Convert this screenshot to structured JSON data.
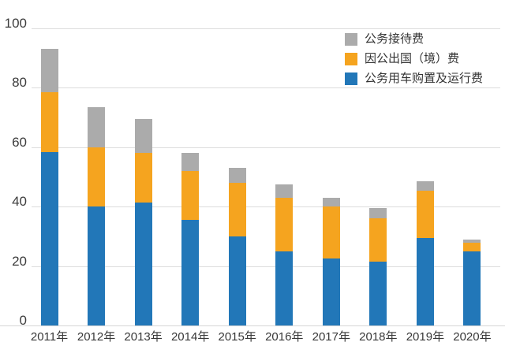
{
  "chart_data": {
    "type": "bar",
    "stacked": true,
    "title": "",
    "xlabel": "",
    "ylabel": "",
    "categories": [
      "2011年",
      "2012年",
      "2013年",
      "2014年",
      "2015年",
      "2016年",
      "2017年",
      "2018年",
      "2019年",
      "2020年"
    ],
    "series": [
      {
        "name": "公务用车购置及运行费",
        "color": "#2277B8",
        "values": [
          58.5,
          40,
          41.5,
          35.5,
          30,
          25,
          22.5,
          21.5,
          29.5,
          25
        ]
      },
      {
        "name": "因公出国（境）费",
        "color": "#F5A41F",
        "values": [
          20,
          20,
          16.5,
          16.5,
          18,
          18,
          17.5,
          14.5,
          16,
          3
        ]
      },
      {
        "name": "公务接待费",
        "color": "#ABABAB",
        "values": [
          14.5,
          13.5,
          11.5,
          6,
          5,
          4.5,
          3,
          3.5,
          3,
          1
        ]
      }
    ],
    "stack_totals": [
      93,
      73.5,
      69.5,
      58,
      53,
      47.5,
      43,
      39.5,
      48.5,
      29
    ],
    "y_ticks": [
      0,
      20,
      40,
      60,
      80,
      100
    ],
    "ylim": [
      0,
      100
    ],
    "grid": true,
    "gridline_color": "#dcdcdc",
    "legend_position": "top-right-inside",
    "legend_items": [
      {
        "label": "公务接待费",
        "color": "#ABABAB"
      },
      {
        "label": "因公出国（境）费",
        "color": "#F5A41F"
      },
      {
        "label": "公务用车购置及运行费",
        "color": "#2277B8"
      }
    ]
  }
}
